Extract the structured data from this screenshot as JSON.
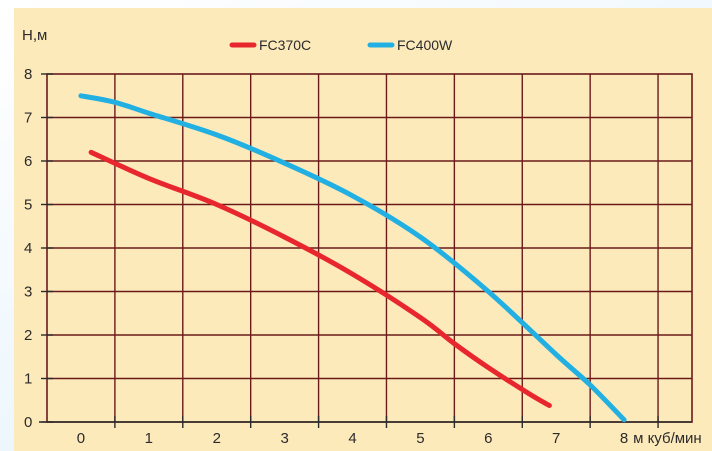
{
  "chart_data": {
    "type": "line",
    "title": "",
    "ylabel": "H,м",
    "xlabel": "м куб/мин",
    "xlim": [
      -0.5,
      9
    ],
    "ylim": [
      0,
      8
    ],
    "x_ticks": [
      "0",
      "1",
      "2",
      "3",
      "4",
      "5",
      "6",
      "7",
      "8"
    ],
    "y_ticks": [
      "0",
      "1",
      "2",
      "3",
      "4",
      "5",
      "6",
      "7",
      "8"
    ],
    "grid": true,
    "legend_position": "top-center",
    "series": [
      {
        "name": "FC370C",
        "color": "#e8262e",
        "points": [
          [
            0.15,
            6.2
          ],
          [
            1,
            5.6
          ],
          [
            2,
            5.0
          ],
          [
            3,
            4.25
          ],
          [
            4,
            3.4
          ],
          [
            5,
            2.4
          ],
          [
            5.5,
            1.8
          ],
          [
            6,
            1.25
          ],
          [
            6.6,
            0.65
          ],
          [
            6.9,
            0.38
          ]
        ]
      },
      {
        "name": "FC400W",
        "color": "#22b0e2",
        "points": [
          [
            0,
            7.5
          ],
          [
            0.5,
            7.35
          ],
          [
            1,
            7.1
          ],
          [
            2,
            6.6
          ],
          [
            3,
            5.95
          ],
          [
            4,
            5.2
          ],
          [
            5,
            4.25
          ],
          [
            6,
            3.0
          ],
          [
            7,
            1.55
          ],
          [
            7.5,
            0.85
          ],
          [
            8,
            0.05
          ]
        ]
      }
    ]
  }
}
